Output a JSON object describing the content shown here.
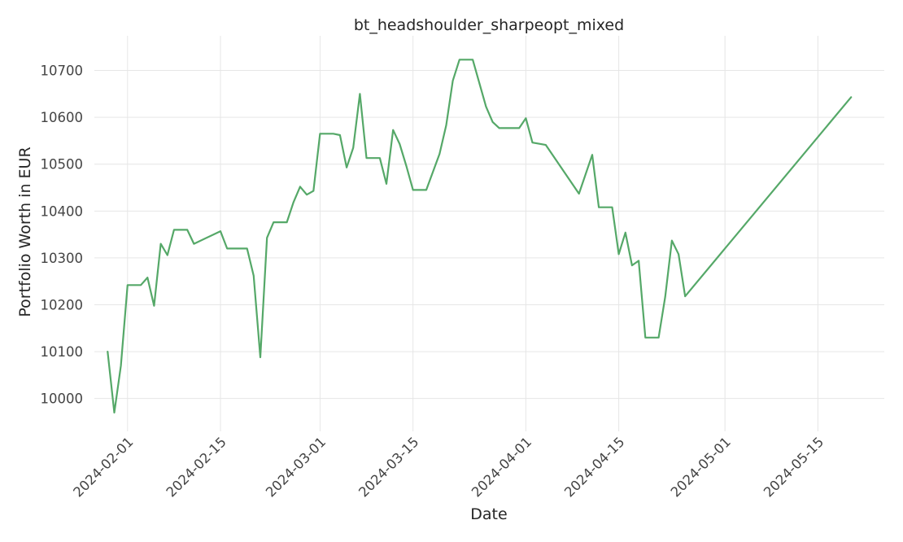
{
  "chart_data": {
    "type": "line",
    "title": "bt_headshoulder_sharpeopt_mixed",
    "xlabel": "Date",
    "ylabel": "Portfolio Worth in EUR",
    "xlim": [
      "2024-01-27",
      "2024-05-25"
    ],
    "ylim": [
      9930,
      10760
    ],
    "grid": true,
    "line_color": "#55a868",
    "x_ticks": [
      "2024-02-01",
      "2024-02-15",
      "2024-03-01",
      "2024-03-15",
      "2024-04-01",
      "2024-04-15",
      "2024-05-01",
      "2024-05-15"
    ],
    "y_ticks": [
      10000,
      10100,
      10200,
      10300,
      10400,
      10500,
      10600,
      10700
    ],
    "series": [
      {
        "x": [
          "2024-01-29",
          "2024-01-30",
          "2024-01-31",
          "2024-02-01",
          "2024-02-02",
          "2024-02-03",
          "2024-02-04",
          "2024-02-05",
          "2024-02-06",
          "2024-02-07",
          "2024-02-08",
          "2024-02-09",
          "2024-02-10",
          "2024-02-11",
          "2024-02-15",
          "2024-02-16",
          "2024-02-19",
          "2024-02-20",
          "2024-02-21",
          "2024-02-22",
          "2024-02-23",
          "2024-02-25",
          "2024-02-26",
          "2024-02-27",
          "2024-02-28",
          "2024-02-29",
          "2024-03-01",
          "2024-03-03",
          "2024-03-04",
          "2024-03-05",
          "2024-03-06",
          "2024-03-07",
          "2024-03-08",
          "2024-03-10",
          "2024-03-11",
          "2024-03-12",
          "2024-03-13",
          "2024-03-14",
          "2024-03-15",
          "2024-03-17",
          "2024-03-19",
          "2024-03-20",
          "2024-03-21",
          "2024-03-22",
          "2024-03-24",
          "2024-03-26",
          "2024-03-27",
          "2024-03-28",
          "2024-03-31",
          "2024-04-01",
          "2024-04-02",
          "2024-04-04",
          "2024-04-09",
          "2024-04-11",
          "2024-04-12",
          "2024-04-13",
          "2024-04-14",
          "2024-04-15",
          "2024-04-16",
          "2024-04-17",
          "2024-04-18",
          "2024-04-19",
          "2024-04-21",
          "2024-04-22",
          "2024-04-23",
          "2024-04-24",
          "2024-04-25",
          "2024-05-20"
        ],
        "values": [
          10100,
          9970,
          10070,
          10242,
          10242,
          10242,
          10258,
          10198,
          10330,
          10306,
          10360,
          10360,
          10360,
          10330,
          10357,
          10320,
          10320,
          10262,
          10088,
          10343,
          10376,
          10376,
          10419,
          10452,
          10435,
          10443,
          10565,
          10565,
          10562,
          10493,
          10535,
          10650,
          10513,
          10513,
          10458,
          10573,
          10543,
          10496,
          10445,
          10445,
          10522,
          10583,
          10678,
          10723,
          10723,
          10623,
          10590,
          10577,
          10577,
          10598,
          10546,
          10541,
          10437,
          10520,
          10408,
          10408,
          10408,
          10308,
          10354,
          10284,
          10294,
          10130,
          10130,
          10217,
          10337,
          10308,
          10218,
          10643
        ]
      }
    ]
  }
}
